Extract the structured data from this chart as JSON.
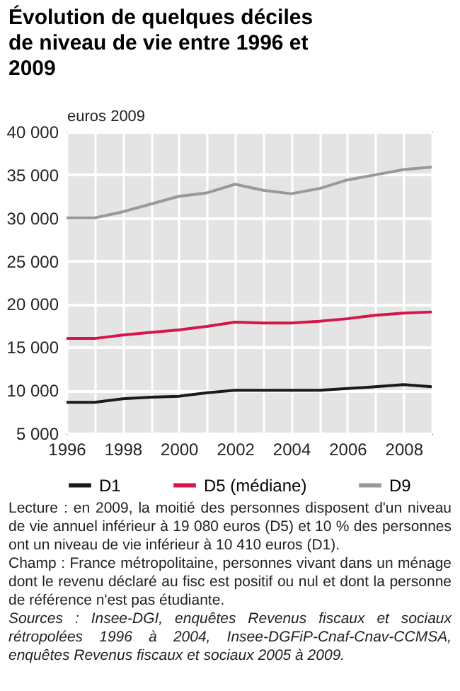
{
  "chart_data": {
    "type": "line",
    "title": "Évolution de quelques déciles de niveau de vie entre 1996 et 2009",
    "ylabel": "euros 2009",
    "x": [
      1996,
      1997,
      1998,
      1999,
      2000,
      2001,
      2002,
      2003,
      2004,
      2005,
      2006,
      2007,
      2008,
      2009
    ],
    "series": [
      {
        "name": "D1",
        "color": "#1a1a1a",
        "values": [
          8600,
          8600,
          9000,
          9200,
          9300,
          9700,
          10000,
          10000,
          10000,
          10000,
          10200,
          10400,
          10650,
          10410
        ]
      },
      {
        "name": "D5 (médiane)",
        "color": "#d6164a",
        "values": [
          16000,
          16000,
          16400,
          16700,
          17000,
          17400,
          17900,
          17800,
          17800,
          18000,
          18300,
          18700,
          18950,
          19080
        ]
      },
      {
        "name": "D9",
        "color": "#999999",
        "values": [
          30000,
          30000,
          30700,
          31600,
          32500,
          32900,
          33900,
          33200,
          32800,
          33400,
          34400,
          35000,
          35600,
          35900
        ]
      }
    ],
    "xlim": [
      1996,
      2009
    ],
    "xticks": [
      1996,
      {
        "value": 1997,
        "label": null
      },
      1998,
      {
        "value": 1999,
        "label": null
      },
      2000,
      {
        "value": 2001,
        "label": null
      },
      2002,
      {
        "value": 2003,
        "label": null
      },
      2004,
      {
        "value": 2005,
        "label": null
      },
      2006,
      {
        "value": 2007,
        "label": null
      },
      2008,
      {
        "value": 2009,
        "label": null
      }
    ],
    "ylim": [
      5000,
      40000
    ],
    "yticks": [
      {
        "value": 5000,
        "label": "5 000"
      },
      {
        "value": 10000,
        "label": "10 000"
      },
      {
        "value": 15000,
        "label": "15 000"
      },
      {
        "value": 20000,
        "label": "20 000"
      },
      {
        "value": 25000,
        "label": "25 000"
      },
      {
        "value": 30000,
        "label": "30 000"
      },
      {
        "value": 35000,
        "label": "35 000"
      },
      {
        "value": 40000,
        "label": "40 000"
      }
    ],
    "grid": true,
    "legend": "bottom",
    "annotations": [
      "Lecture : en 2009, la moitié des personnes disposent d'un niveau de vie annuel inférieur à 19 080 euros (D5) et 10 % des personnes ont un niveau de vie inférieur à 10 410 euros (D1).",
      "Champ : France métropolitaine, personnes vivant dans un ménage dont le revenu déclaré au fisc est positif ou nul et dont la personne de référence n'est pas étudiante.",
      "Sources : Insee-DGI, enquêtes Revenus fiscaux et sociaux rétropolées 1996 à 2004, Insee-DGFiP-Cnaf-Cnav-CCMSA, enquêtes Revenus fiscaux et sociaux 2005 à 2009."
    ]
  }
}
